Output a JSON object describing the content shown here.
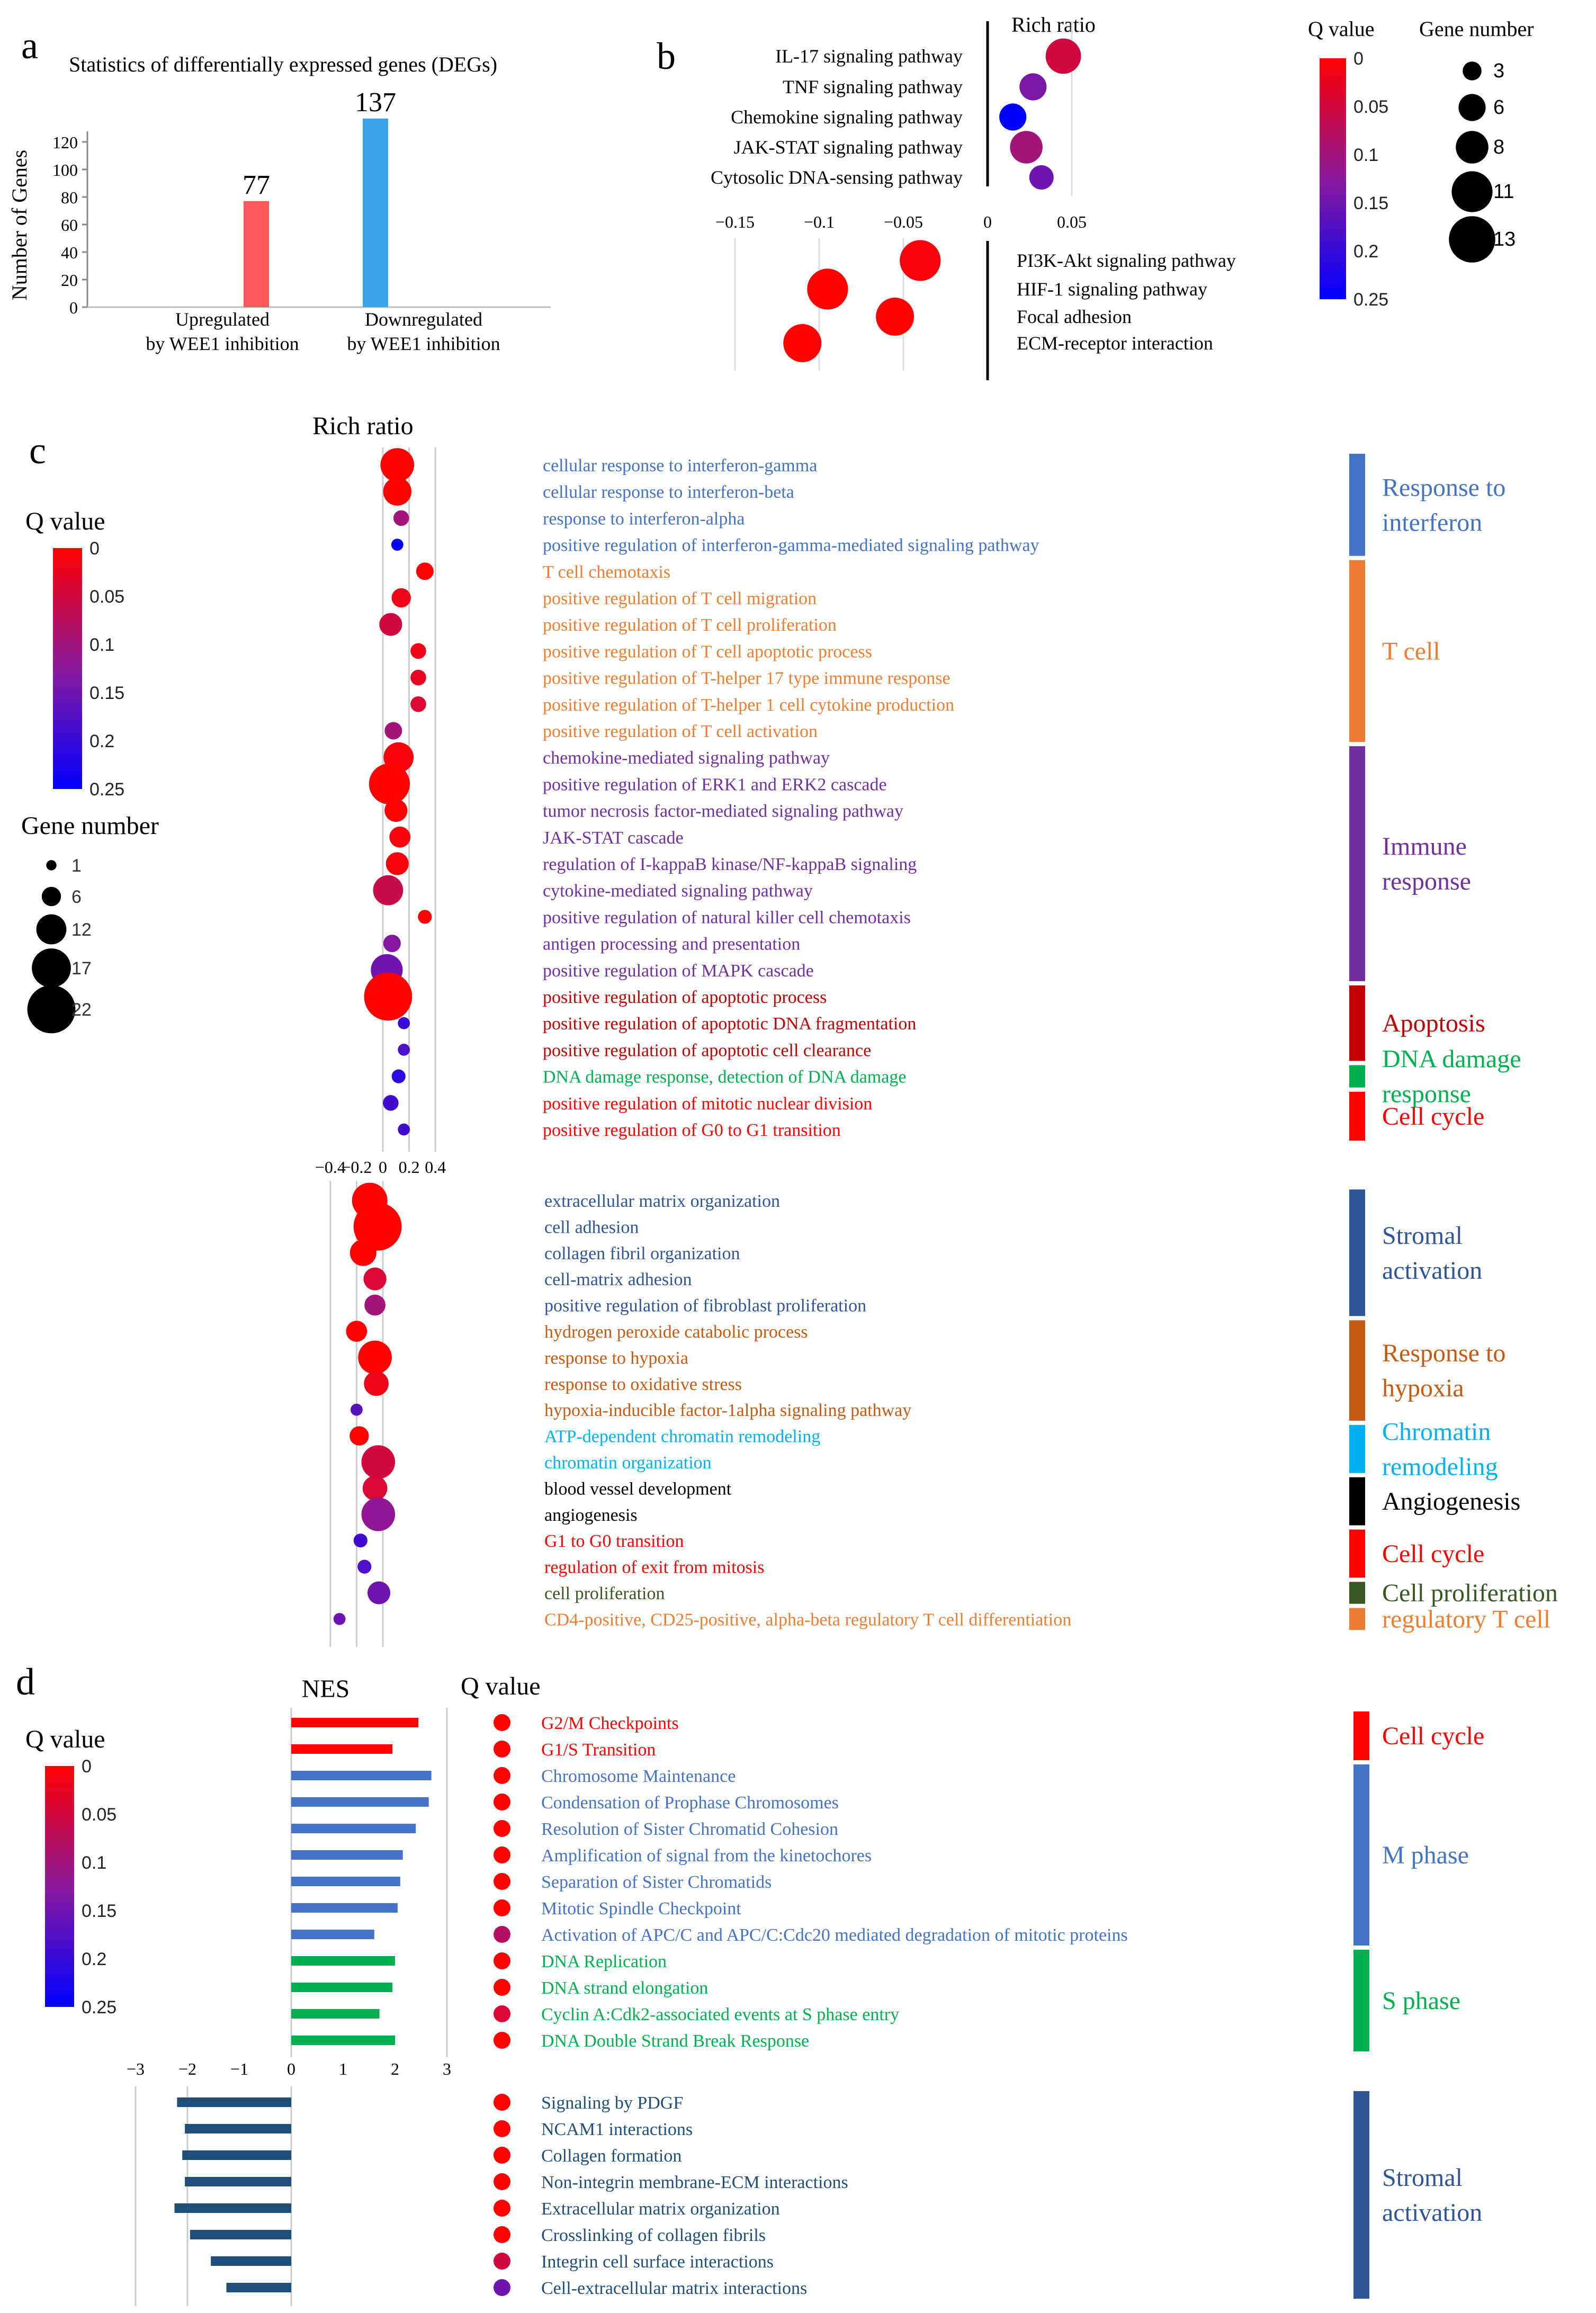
{
  "colors": {
    "qhigh": "#ff0000",
    "qmid": "#8a1a9b",
    "qlow": "#0000ff",
    "up_bar": "#ff5a5a",
    "down_bar": "#3aa4e8",
    "interferon": "#4472c4",
    "tcell": "#ed7d31",
    "immune": "#7030a0",
    "apoptosis": "#c00000",
    "dna_damage": "#00b050",
    "cellcycle": "#ff0000",
    "stromal": "#2f5597",
    "hypoxia": "#c55a11",
    "chromatin": "#00b0f0",
    "angio": "#000000",
    "prolif": "#385723",
    "treg": "#ed7d31",
    "mphase": "#4472c4",
    "sphase": "#00b050",
    "nes_stromal": "#1f4e79"
  },
  "panel_a": {
    "letter": "a",
    "chart_data": {
      "type": "bar",
      "title": "Statistics of differentially expressed genes (DEGs)",
      "ylabel": "Number of Genes",
      "categories": [
        "Upregulated by WEE1 inhibition",
        "Downregulated by WEE1 inhibition"
      ],
      "category_lines": [
        [
          "Upregulated",
          "by WEE1 inhibition"
        ],
        [
          "Downregulated",
          "by WEE1 inhibition"
        ]
      ],
      "values": [
        77,
        137
      ],
      "value_labels": [
        "77",
        "137"
      ],
      "yticks": [
        0,
        20,
        40,
        60,
        80,
        100,
        120
      ],
      "ylim": [
        0,
        130
      ]
    }
  },
  "panel_b": {
    "letter": "b",
    "chart_data": {
      "type": "scatter",
      "xlabel": "Rich ratio",
      "legend_q_title": "Q value",
      "legend_q_ticks": [
        "0",
        "0.05",
        "0.1",
        "0.15",
        "0.2",
        "0.25"
      ],
      "legend_size_title": "Gene number",
      "legend_size_values": [
        3,
        6,
        8,
        11,
        13
      ],
      "xticks": [
        "−0.15",
        "−0.1",
        "−0.05",
        "0",
        "0.05"
      ],
      "xtick_values": [
        -0.15,
        -0.1,
        -0.05,
        0,
        0.05
      ],
      "up": [
        {
          "term": "IL-17 signaling pathway",
          "x": 0.045,
          "q": 0.05,
          "n": 9
        },
        {
          "term": "TNF signaling pathway",
          "x": 0.027,
          "q": 0.14,
          "n": 6
        },
        {
          "term": "Chemokine signaling pathway",
          "x": 0.015,
          "q": 0.25,
          "n": 6
        },
        {
          "term": "JAK-STAT signaling pathway",
          "x": 0.023,
          "q": 0.1,
          "n": 8
        },
        {
          "term": "Cytosolic DNA-sensing pathway",
          "x": 0.032,
          "q": 0.15,
          "n": 5
        }
      ],
      "down": [
        {
          "term": "PI3K-Akt signaling pathway",
          "x": -0.04,
          "q": 0.01,
          "n": 11
        },
        {
          "term": "HIF-1 signaling pathway",
          "x": -0.095,
          "q": 0.0,
          "n": 11
        },
        {
          "term": "Focal adhesion",
          "x": -0.055,
          "q": 0.0,
          "n": 10
        },
        {
          "term": "ECM-receptor interaction",
          "x": -0.11,
          "q": 0.0,
          "n": 10
        }
      ]
    }
  },
  "panel_c": {
    "letter": "c",
    "chart_data": {
      "type": "scatter",
      "xlabel": "Rich ratio",
      "legend_q_title": "Q value",
      "legend_q_ticks": [
        "0",
        "0.05",
        "0.1",
        "0.15",
        "0.2",
        "0.25"
      ],
      "legend_size_title": "Gene number",
      "legend_size_values": [
        1,
        6,
        12,
        17,
        22
      ],
      "xticks": [
        "−0.4",
        "−0.2",
        "0",
        "0.2",
        "0.4"
      ],
      "xtick_values": [
        -0.4,
        -0.2,
        0,
        0.2,
        0.4
      ],
      "up": [
        {
          "term": "cellular response to interferon-gamma",
          "x": 0.11,
          "q": 0.0,
          "n": 14,
          "g": "interferon"
        },
        {
          "term": "cellular response to interferon-beta",
          "x": 0.11,
          "q": 0.0,
          "n": 11,
          "g": "interferon"
        },
        {
          "term": "response to interferon-alpha",
          "x": 0.14,
          "q": 0.1,
          "n": 4,
          "g": "interferon"
        },
        {
          "term": "positive regulation of interferon-gamma-mediated signaling pathway",
          "x": 0.11,
          "q": 0.25,
          "n": 2,
          "g": "interferon"
        },
        {
          "term": "T cell chemotaxis",
          "x": 0.32,
          "q": 0.0,
          "n": 5,
          "g": "tcell"
        },
        {
          "term": "positive regulation of T cell migration",
          "x": 0.14,
          "q": 0.02,
          "n": 6,
          "g": "tcell"
        },
        {
          "term": "positive regulation of T cell proliferation",
          "x": 0.06,
          "q": 0.05,
          "n": 8,
          "g": "tcell"
        },
        {
          "term": "positive regulation of T cell apoptotic process",
          "x": 0.27,
          "q": 0.02,
          "n": 4,
          "g": "tcell"
        },
        {
          "term": "positive regulation of T-helper 17 type immune response",
          "x": 0.27,
          "q": 0.03,
          "n": 4,
          "g": "tcell"
        },
        {
          "term": "positive regulation of T-helper 1 cell cytokine production",
          "x": 0.27,
          "q": 0.04,
          "n": 4,
          "g": "tcell"
        },
        {
          "term": "positive regulation of T cell activation",
          "x": 0.08,
          "q": 0.1,
          "n": 5,
          "g": "tcell"
        },
        {
          "term": "chemokine-mediated signaling pathway",
          "x": 0.12,
          "q": 0.01,
          "n": 12,
          "g": "immune"
        },
        {
          "term": "positive regulation of ERK1 and ERK2 cascade",
          "x": 0.05,
          "q": 0.0,
          "n": 18,
          "g": "immune"
        },
        {
          "term": "tumor necrosis factor-mediated signaling pathway",
          "x": 0.1,
          "q": 0.0,
          "n": 8,
          "g": "immune"
        },
        {
          "term": "JAK-STAT cascade",
          "x": 0.13,
          "q": 0.01,
          "n": 7,
          "g": "immune"
        },
        {
          "term": "regulation of I-kappaB kinase/NF-kappaB signaling",
          "x": 0.11,
          "q": 0.01,
          "n": 8,
          "g": "immune"
        },
        {
          "term": "cytokine-mediated signaling pathway",
          "x": 0.04,
          "q": 0.06,
          "n": 12,
          "g": "immune"
        },
        {
          "term": "positive regulation of natural killer cell chemotaxis",
          "x": 0.32,
          "q": 0.0,
          "n": 3,
          "g": "immune"
        },
        {
          "term": "antigen processing and presentation",
          "x": 0.07,
          "q": 0.13,
          "n": 5,
          "g": "immune"
        },
        {
          "term": "positive regulation of MAPK cascade",
          "x": 0.03,
          "q": 0.15,
          "n": 13,
          "g": "immune"
        },
        {
          "term": "positive regulation of apoptotic process",
          "x": 0.04,
          "q": 0.0,
          "n": 22,
          "g": "apoptosis"
        },
        {
          "term": "positive regulation of apoptotic DNA fragmentation",
          "x": 0.16,
          "q": 0.2,
          "n": 2,
          "g": "apoptosis"
        },
        {
          "term": "positive regulation of apoptotic cell clearance",
          "x": 0.16,
          "q": 0.18,
          "n": 2,
          "g": "apoptosis"
        },
        {
          "term": "DNA damage response, detection of DNA damage",
          "x": 0.12,
          "q": 0.21,
          "n": 3,
          "g": "dna_damage"
        },
        {
          "term": "positive regulation of mitotic nuclear division",
          "x": 0.06,
          "q": 0.19,
          "n": 4,
          "g": "cellcycle"
        },
        {
          "term": "positive regulation of G0 to G1 transition",
          "x": 0.16,
          "q": 0.19,
          "n": 2,
          "g": "cellcycle"
        }
      ],
      "down": [
        {
          "term": "extracellular matrix organization",
          "x": -0.1,
          "q": 0.0,
          "n": 15,
          "g": "stromal"
        },
        {
          "term": "cell adhesion",
          "x": -0.04,
          "q": 0.0,
          "n": 22,
          "g": "stromal"
        },
        {
          "term": "collagen fibril organization",
          "x": -0.15,
          "q": 0.0,
          "n": 10,
          "g": "stromal"
        },
        {
          "term": "cell-matrix adhesion",
          "x": -0.06,
          "q": 0.04,
          "n": 8,
          "g": "stromal"
        },
        {
          "term": "positive regulation of fibroblast proliferation",
          "x": -0.06,
          "q": 0.1,
          "n": 7,
          "g": "stromal"
        },
        {
          "term": "hydrogen peroxide catabolic process",
          "x": -0.2,
          "q": 0.0,
          "n": 7,
          "g": "hypoxia"
        },
        {
          "term": "response to hypoxia",
          "x": -0.06,
          "q": 0.0,
          "n": 14,
          "g": "hypoxia"
        },
        {
          "term": "response to oxidative stress",
          "x": -0.05,
          "q": 0.02,
          "n": 9,
          "g": "hypoxia"
        },
        {
          "term": "hypoxia-inducible factor-1alpha signaling pathway",
          "x": -0.2,
          "q": 0.17,
          "n": 2,
          "g": "hypoxia"
        },
        {
          "term": "ATP-dependent chromatin remodeling",
          "x": -0.18,
          "q": 0.0,
          "n": 6,
          "g": "chromatin"
        },
        {
          "term": "chromatin organization",
          "x": -0.035,
          "q": 0.05,
          "n": 14,
          "g": "chromatin"
        },
        {
          "term": "blood vessel development",
          "x": -0.06,
          "q": 0.04,
          "n": 9,
          "g": "angio"
        },
        {
          "term": "angiogenesis",
          "x": -0.035,
          "q": 0.12,
          "n": 14,
          "g": "angio"
        },
        {
          "term": "G1 to G0 transition",
          "x": -0.17,
          "q": 0.19,
          "n": 3,
          "g": "cellcycle"
        },
        {
          "term": "regulation of exit from mitosis",
          "x": -0.14,
          "q": 0.18,
          "n": 3,
          "g": "cellcycle"
        },
        {
          "term": "cell proliferation",
          "x": -0.03,
          "q": 0.15,
          "n": 8,
          "g": "prolif"
        },
        {
          "term": "CD4-positive, CD25-positive, alpha-beta regulatory T cell differentiation",
          "x": -0.33,
          "q": 0.15,
          "n": 2,
          "g": "treg"
        }
      ],
      "categories": [
        {
          "label": "Response to\ninterferon",
          "lines": [
            "Response to",
            "interferon"
          ],
          "color": "#4472c4",
          "from": 0,
          "to": 3,
          "side": "up"
        },
        {
          "label": "T cell",
          "lines": [
            "T cell"
          ],
          "color": "#ed7d31",
          "from": 4,
          "to": 10,
          "side": "up"
        },
        {
          "label": "Immune\nresponse",
          "lines": [
            "Immune",
            "response"
          ],
          "color": "#7030a0",
          "from": 11,
          "to": 19,
          "side": "up"
        },
        {
          "label": "Apoptosis",
          "lines": [
            "Apoptosis"
          ],
          "color": "#c00000",
          "from": 20,
          "to": 22,
          "side": "up"
        },
        {
          "label": "DNA damage\nresponse",
          "lines": [
            "DNA damage",
            "response"
          ],
          "color": "#00b050",
          "from": 23,
          "to": 23,
          "side": "up"
        },
        {
          "label": "Cell cycle",
          "lines": [
            "Cell cycle"
          ],
          "color": "#ff0000",
          "from": 24,
          "to": 25,
          "side": "up"
        },
        {
          "label": "Stromal\nactivation",
          "lines": [
            "Stromal",
            "activation"
          ],
          "color": "#2f5597",
          "from": 0,
          "to": 4,
          "side": "down"
        },
        {
          "label": "Response to\nhypoxia",
          "lines": [
            "Response to",
            "hypoxia"
          ],
          "color": "#c55a11",
          "from": 5,
          "to": 8,
          "side": "down"
        },
        {
          "label": "Chromatin\nremodeling",
          "lines": [
            "Chromatin",
            "remodeling"
          ],
          "color": "#00b0f0",
          "from": 9,
          "to": 10,
          "side": "down"
        },
        {
          "label": "Angiogenesis",
          "lines": [
            "Angiogenesis"
          ],
          "color": "#000000",
          "from": 11,
          "to": 12,
          "side": "down"
        },
        {
          "label": "Cell cycle",
          "lines": [
            "Cell cycle"
          ],
          "color": "#ff0000",
          "from": 13,
          "to": 14,
          "side": "down"
        },
        {
          "label": "Cell proliferation",
          "lines": [
            "Cell proliferation"
          ],
          "color": "#385723",
          "from": 15,
          "to": 15,
          "side": "down"
        },
        {
          "label": "regulatory T cell",
          "lines": [
            "regulatory T cell"
          ],
          "color": "#ed7d31",
          "from": 16,
          "to": 16,
          "side": "down"
        }
      ]
    }
  },
  "panel_d": {
    "letter": "d",
    "chart_data": {
      "type": "bar",
      "xlabel": "NES",
      "qlabel": "Q value",
      "legend_q_title": "Q value",
      "legend_q_ticks": [
        "0",
        "0.05",
        "0.1",
        "0.15",
        "0.2",
        "0.25"
      ],
      "xticks": [
        "−3",
        "−2",
        "−1",
        "0",
        "1",
        "2",
        "3"
      ],
      "xtick_values": [
        -3,
        -2,
        -1,
        0,
        1,
        2,
        3
      ],
      "up": [
        {
          "term": "G2/M Checkpoints",
          "nes": 2.45,
          "q": 0.0,
          "g": "cellcycle"
        },
        {
          "term": "G1/S Transition",
          "nes": 1.95,
          "q": 0.0,
          "g": "cellcycle"
        },
        {
          "term": "Chromosome Maintenance",
          "nes": 2.7,
          "q": 0.0,
          "g": "mphase"
        },
        {
          "term": "Condensation of Prophase Chromosomes",
          "nes": 2.65,
          "q": 0.0,
          "g": "mphase"
        },
        {
          "term": "Resolution of Sister Chromatid Cohesion",
          "nes": 2.4,
          "q": 0.0,
          "g": "mphase"
        },
        {
          "term": "Amplification of signal from the kinetochores",
          "nes": 2.15,
          "q": 0.0,
          "g": "mphase"
        },
        {
          "term": "Separation of Sister Chromatids",
          "nes": 2.1,
          "q": 0.0,
          "g": "mphase"
        },
        {
          "term": "Mitotic Spindle Checkpoint",
          "nes": 2.05,
          "q": 0.0,
          "g": "mphase"
        },
        {
          "term": "Activation of APC/C and APC/C:Cdc20 mediated degradation of mitotic proteins",
          "nes": 1.6,
          "q": 0.08,
          "g": "mphase"
        },
        {
          "term": "DNA Replication",
          "nes": 2.0,
          "q": 0.0,
          "g": "sphase"
        },
        {
          "term": "DNA strand elongation",
          "nes": 1.95,
          "q": 0.0,
          "g": "sphase"
        },
        {
          "term": "Cyclin A:Cdk2-associated events at S phase entry",
          "nes": 1.7,
          "q": 0.04,
          "g": "sphase"
        },
        {
          "term": "DNA Double Strand Break Response",
          "nes": 2.0,
          "q": 0.0,
          "g": "sphase"
        }
      ],
      "down": [
        {
          "term": "Signaling by PDGF",
          "nes": -2.2,
          "q": 0.0,
          "g": "stromal"
        },
        {
          "term": "NCAM1 interactions",
          "nes": -2.05,
          "q": 0.0,
          "g": "stromal"
        },
        {
          "term": "Collagen formation",
          "nes": -2.1,
          "q": 0.0,
          "g": "stromal"
        },
        {
          "term": "Non-integrin membrane-ECM interactions",
          "nes": -2.05,
          "q": 0.0,
          "g": "stromal"
        },
        {
          "term": "Extracellular matrix organization",
          "nes": -2.25,
          "q": 0.0,
          "g": "stromal"
        },
        {
          "term": "Crosslinking of collagen fibrils",
          "nes": -1.95,
          "q": 0.0,
          "g": "stromal"
        },
        {
          "term": "Integrin cell surface interactions",
          "nes": -1.55,
          "q": 0.05,
          "g": "stromal"
        },
        {
          "term": "Cell-extracellular matrix interactions",
          "nes": -1.25,
          "q": 0.15,
          "g": "stromal"
        }
      ],
      "categories": [
        {
          "label": "Cell cycle",
          "lines": [
            "Cell cycle"
          ],
          "color": "#ff0000",
          "from": 0,
          "to": 1,
          "side": "up"
        },
        {
          "label": "M phase",
          "lines": [
            "M phase"
          ],
          "color": "#4472c4",
          "from": 2,
          "to": 8,
          "side": "up"
        },
        {
          "label": "S phase",
          "lines": [
            "S phase"
          ],
          "color": "#00b050",
          "from": 9,
          "to": 12,
          "side": "up"
        },
        {
          "label": "Stromal\nactivation",
          "lines": [
            "Stromal",
            "activation"
          ],
          "color": "#2f5597",
          "from": 0,
          "to": 7,
          "side": "down"
        }
      ]
    }
  }
}
